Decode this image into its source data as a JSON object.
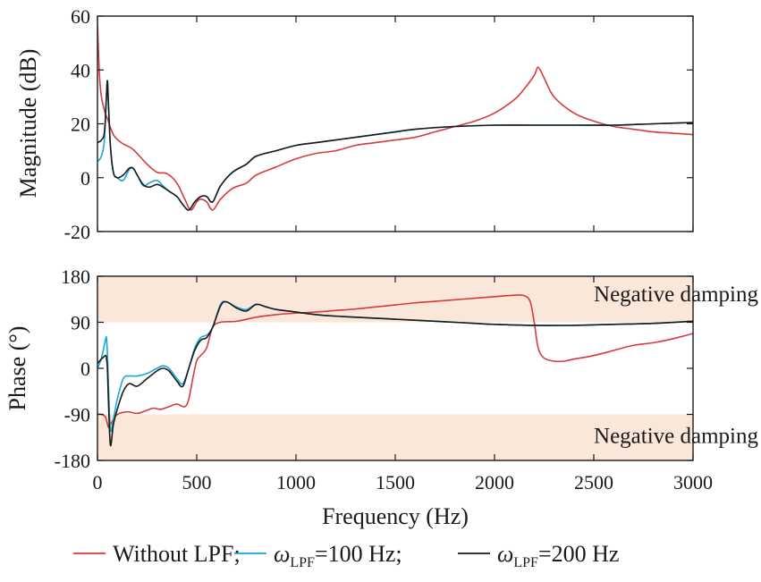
{
  "chart_data": [
    {
      "id": "magnitude",
      "type": "line",
      "xlabel": "",
      "ylabel": "Magnitude (dB)",
      "xlim": [
        0,
        3000
      ],
      "ylim": [
        -20,
        60
      ],
      "yticks": [
        -20,
        0,
        20,
        40,
        60
      ],
      "grid": false,
      "series": [
        {
          "key": "without_lpf",
          "color": "#d73a3a",
          "x": [
            0,
            10,
            20,
            35,
            50,
            80,
            120,
            170,
            200,
            250,
            300,
            350,
            400,
            440,
            470,
            500,
            520,
            550,
            580,
            620,
            680,
            750,
            800,
            900,
            1000,
            1100,
            1200,
            1300,
            1400,
            1500,
            1600,
            1700,
            1800,
            1900,
            2000,
            2100,
            2150,
            2200,
            2220,
            2250,
            2300,
            2400,
            2500,
            2600,
            2700,
            2800,
            2900,
            3000
          ],
          "y": [
            57,
            38,
            30,
            25,
            22,
            16,
            13,
            11,
            9,
            5,
            2,
            1.5,
            -2,
            -8,
            -12,
            -9,
            -8,
            -9,
            -12,
            -8,
            -4,
            -2,
            1,
            4,
            7,
            9,
            10,
            12,
            13,
            14,
            15,
            17,
            19,
            21,
            24,
            29,
            33,
            38,
            41,
            37,
            30,
            24,
            21,
            19,
            18,
            17,
            16.5,
            16
          ]
        },
        {
          "key": "lpf_100",
          "color": "#1aa6d8",
          "x": [
            0,
            20,
            35,
            45,
            50,
            55,
            65,
            80,
            100,
            130,
            160,
            180,
            200,
            230,
            260,
            300,
            330,
            360,
            400,
            430,
            460,
            490,
            520,
            550,
            580,
            620,
            680,
            750,
            800,
            900,
            1000,
            1100,
            1200,
            1300,
            1400,
            1500,
            1600,
            1800,
            2000,
            2200,
            2400,
            2600,
            2800,
            3000
          ],
          "y": [
            6,
            8,
            14,
            30,
            36,
            28,
            12,
            2,
            0,
            -1,
            3,
            3.5,
            1,
            -3,
            -2,
            -1,
            -3,
            -5,
            -7,
            -10,
            -12,
            -9,
            -7,
            -7,
            -9,
            -3,
            2,
            5,
            8,
            10,
            12,
            13,
            14,
            15,
            16,
            17,
            18,
            19,
            19.5,
            19.5,
            19.5,
            19.5,
            20,
            20.5
          ]
        },
        {
          "key": "lpf_200",
          "color": "#1a1a1a",
          "x": [
            0,
            20,
            35,
            45,
            50,
            55,
            65,
            80,
            100,
            130,
            160,
            180,
            200,
            230,
            260,
            300,
            330,
            360,
            400,
            430,
            460,
            490,
            520,
            550,
            580,
            620,
            680,
            750,
            800,
            900,
            1000,
            1100,
            1200,
            1300,
            1400,
            1500,
            1600,
            1800,
            2000,
            2200,
            2400,
            2600,
            2800,
            3000
          ],
          "y": [
            13,
            14,
            17,
            30,
            36,
            28,
            12,
            2,
            0,
            1,
            3.5,
            3.5,
            1,
            -2.5,
            -3.5,
            -2.5,
            -3.5,
            -5,
            -7,
            -10,
            -12,
            -9,
            -7,
            -7,
            -9,
            -3,
            2,
            5,
            8,
            10,
            12,
            13,
            14,
            15,
            16,
            17,
            18,
            19,
            19.5,
            19.5,
            19.5,
            19.5,
            20,
            20.5
          ]
        }
      ]
    },
    {
      "id": "phase",
      "type": "line",
      "xlabel": "Frequency (Hz)",
      "ylabel": "Phase (°)",
      "xlim": [
        0,
        3000
      ],
      "ylim": [
        -180,
        180
      ],
      "yticks": [
        -180,
        -90,
        0,
        90,
        180
      ],
      "ytick_labels": [
        "-180",
        "-90",
        "0",
        "90",
        "180"
      ],
      "xticks": [
        0,
        500,
        1000,
        1500,
        2000,
        2500,
        3000
      ],
      "grid": false,
      "shaded_bands": [
        {
          "y0": 90,
          "y1": 180,
          "color": "#fbe7da",
          "label": "Negative damping"
        },
        {
          "y0": -180,
          "y1": -90,
          "color": "#fbe7da",
          "label": "Negative damping"
        }
      ],
      "series": [
        {
          "key": "without_lpf",
          "color": "#d73a3a",
          "x": [
            0,
            20,
            40,
            55,
            65,
            80,
            100,
            150,
            200,
            250,
            280,
            320,
            360,
            400,
            440,
            460,
            480,
            500,
            520,
            550,
            580,
            620,
            700,
            800,
            900,
            1000,
            1100,
            1200,
            1300,
            1400,
            1500,
            1600,
            1700,
            1800,
            1900,
            2000,
            2100,
            2150,
            2180,
            2200,
            2220,
            2250,
            2300,
            2350,
            2400,
            2500,
            2600,
            2700,
            2800,
            2900,
            3000
          ],
          "y": [
            -90,
            -90,
            -95,
            -115,
            -110,
            -100,
            -90,
            -85,
            -88,
            -82,
            -78,
            -80,
            -75,
            -70,
            -75,
            -60,
            -20,
            15,
            25,
            40,
            80,
            90,
            92,
            100,
            105,
            108,
            110,
            113,
            116,
            120,
            124,
            128,
            131,
            134,
            137,
            140,
            143,
            142,
            130,
            90,
            40,
            20,
            14,
            14,
            18,
            25,
            35,
            45,
            50,
            58,
            68
          ]
        },
        {
          "key": "lpf_100",
          "color": "#1aa6d8",
          "x": [
            0,
            20,
            40,
            45,
            50,
            55,
            65,
            80,
            100,
            130,
            160,
            200,
            250,
            300,
            330,
            360,
            400,
            430,
            460,
            490,
            520,
            550,
            580,
            620,
            650,
            700,
            750,
            800,
            850,
            900,
            1000,
            1100,
            1200,
            1300,
            1400,
            1500,
            1600,
            1700,
            1800,
            1900,
            2000,
            2200,
            2400,
            2600,
            2800,
            3000
          ],
          "y": [
            0,
            20,
            55,
            60,
            30,
            -30,
            -120,
            -100,
            -60,
            -20,
            -15,
            -15,
            -10,
            0,
            5,
            0,
            -20,
            -30,
            0,
            40,
            60,
            65,
            80,
            125,
            130,
            120,
            115,
            125,
            120,
            115,
            110,
            105,
            102,
            100,
            98,
            96,
            94,
            92,
            90,
            88,
            86,
            84,
            84,
            86,
            88,
            92
          ]
        },
        {
          "key": "lpf_200",
          "color": "#1a1a1a",
          "x": [
            0,
            20,
            40,
            45,
            50,
            55,
            65,
            80,
            100,
            130,
            160,
            200,
            250,
            300,
            330,
            360,
            400,
            430,
            460,
            490,
            520,
            550,
            580,
            620,
            650,
            700,
            750,
            800,
            850,
            900,
            1000,
            1100,
            1200,
            1300,
            1400,
            1500,
            1600,
            1700,
            1800,
            1900,
            2000,
            2200,
            2400,
            2600,
            2800,
            3000
          ],
          "y": [
            10,
            18,
            25,
            20,
            0,
            -60,
            -150,
            -110,
            -80,
            -45,
            -30,
            -35,
            -20,
            -5,
            0,
            -5,
            -25,
            -35,
            0,
            35,
            55,
            60,
            80,
            122,
            130,
            118,
            112,
            125,
            120,
            115,
            110,
            105,
            102,
            100,
            98,
            96,
            94,
            92,
            90,
            88,
            86,
            84,
            84,
            86,
            88,
            92
          ]
        }
      ]
    }
  ],
  "legend": {
    "placement": "bottom-center",
    "items": [
      {
        "key": "without_lpf",
        "color": "#d73a3a",
        "text": "Without LPF;",
        "symbol": "",
        "subscript": "",
        "suffix": ""
      },
      {
        "key": "lpf_100",
        "color": "#1aa6d8",
        "text": "",
        "symbol": "ω",
        "subscript": "LPF",
        "suffix": "=100 Hz;"
      },
      {
        "key": "lpf_200",
        "color": "#1a1a1a",
        "text": "",
        "symbol": "ω",
        "subscript": "LPF",
        "suffix": "=200 Hz"
      }
    ]
  }
}
